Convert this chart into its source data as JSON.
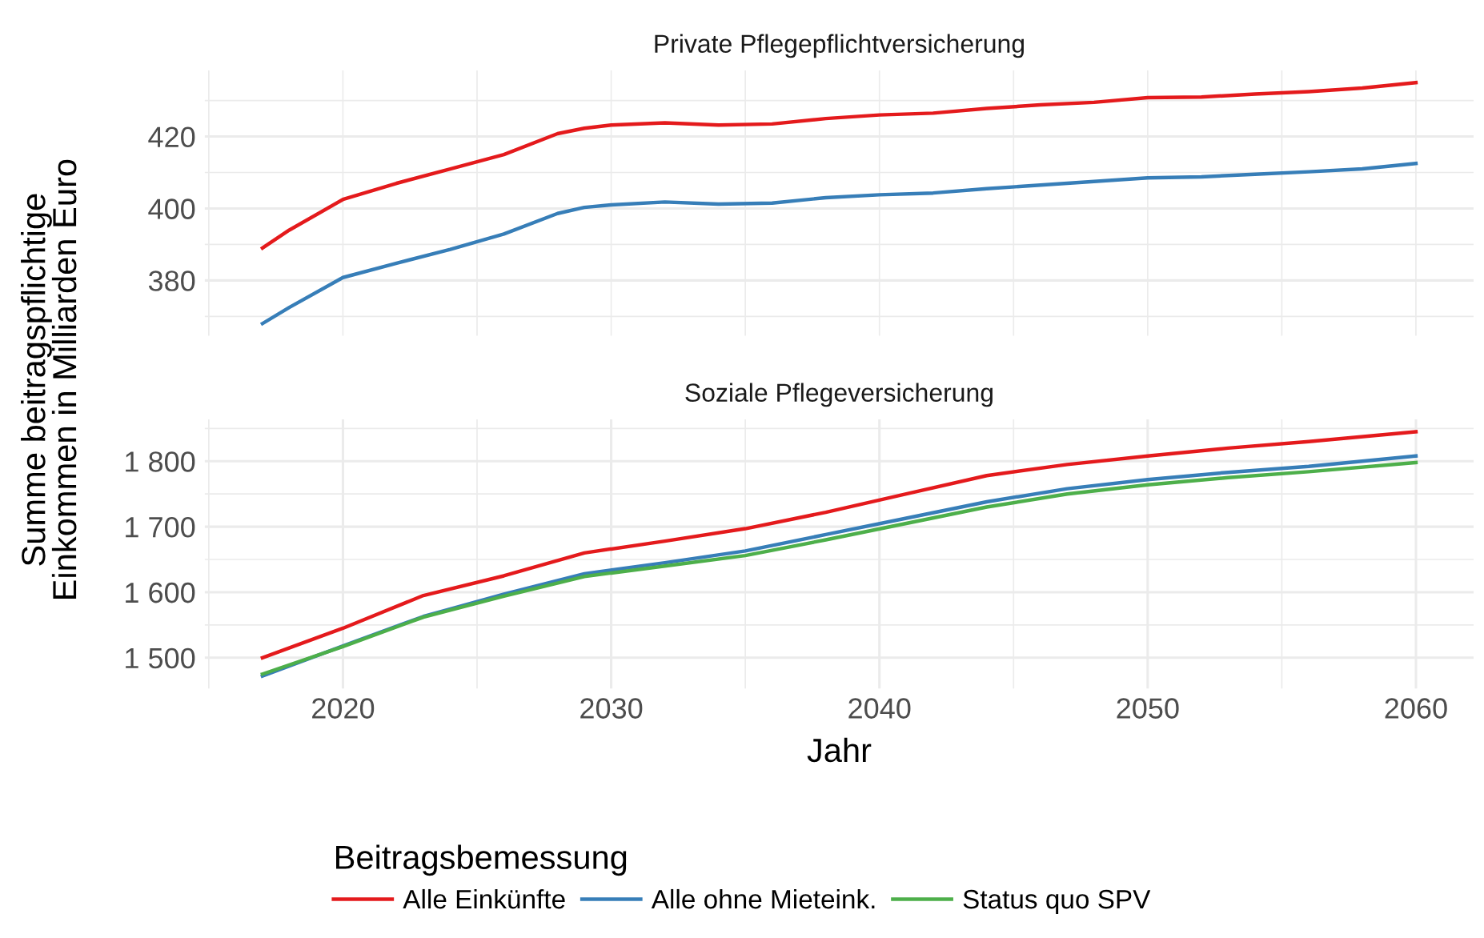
{
  "chart_data": [
    {
      "type": "line",
      "title": "Private Pflegepflichtversicherung",
      "ylabel": "Summe beitragspflichtige\nEinkommen in Milliarden Euro",
      "xlim": [
        2014.85,
        2062.15
      ],
      "xticks": [
        {
          "value": 2015,
          "label": null
        },
        {
          "value": 2020,
          "label": null
        },
        {
          "value": 2025,
          "label": null
        },
        {
          "value": 2030,
          "label": null
        },
        {
          "value": 2035,
          "label": null
        },
        {
          "value": 2040,
          "label": null
        },
        {
          "value": 2045,
          "label": null
        },
        {
          "value": 2050,
          "label": null
        },
        {
          "value": 2055,
          "label": null
        },
        {
          "value": 2060,
          "label": null
        }
      ],
      "ylim": [
        364.6,
        438.4
      ],
      "yticks": [
        {
          "value": 370,
          "label": null
        },
        380,
        {
          "value": 390,
          "label": null
        },
        400,
        {
          "value": 410,
          "label": null
        },
        420,
        {
          "value": 430,
          "label": null
        }
      ],
      "tick_labels": "y",
      "grid": true,
      "x": [
        2017,
        2018,
        2020,
        2022,
        2024,
        2026,
        2028,
        2029,
        2030,
        2032,
        2034,
        2036,
        2038,
        2040,
        2042,
        2044,
        2046,
        2048,
        2050,
        2052,
        2054,
        2056,
        2058,
        2060
      ],
      "series": [
        {
          "color": "#e41a1c",
          "values": [
            389,
            394,
            402.5,
            407,
            411,
            415,
            420.8,
            422.3,
            423.2,
            423.8,
            423.2,
            423.5,
            425,
            426,
            426.5,
            427.8,
            428.8,
            429.5,
            430.8,
            431,
            431.8,
            432.5,
            433.5,
            435
          ]
        },
        {
          "color": "#377eb8",
          "values": [
            368,
            372.5,
            380.8,
            384.8,
            388.6,
            392.9,
            398.6,
            400.3,
            401,
            401.8,
            401.2,
            401.5,
            403,
            403.8,
            404.3,
            405.5,
            406.5,
            407.5,
            408.5,
            408.8,
            409.5,
            410.2,
            411,
            412.5
          ]
        }
      ]
    },
    {
      "type": "line",
      "title": "Soziale Pflegeversicherung",
      "xlabel": "Jahr",
      "xlim": [
        2014.85,
        2062.15
      ],
      "xticks": [
        {
          "value": 2015,
          "label": null
        },
        2020,
        {
          "value": 2025,
          "label": null
        },
        2030,
        {
          "value": 2035,
          "label": null
        },
        2040,
        {
          "value": 2045,
          "label": null
        },
        2050,
        {
          "value": 2055,
          "label": null
        },
        2060
      ],
      "ylim": [
        1453,
        1864
      ],
      "yticks": [
        {
          "value": 1500,
          "label": "1 500"
        },
        {
          "value": 1550,
          "label": null
        },
        {
          "value": 1600,
          "label": "1 600"
        },
        {
          "value": 1650,
          "label": null
        },
        {
          "value": 1700,
          "label": "1 700"
        },
        {
          "value": 1750,
          "label": null
        },
        {
          "value": 1800,
          "label": "1 800"
        },
        {
          "value": 1850,
          "label": null
        }
      ],
      "grid": true,
      "legend": "bottom",
      "legend_title": "Beitragsbemessung",
      "x": [
        2017,
        2020,
        2023,
        2026,
        2029,
        2032,
        2035,
        2038,
        2041,
        2044,
        2047,
        2050,
        2053,
        2056,
        2060
      ],
      "series": [
        {
          "name": "Alle Einkünfte",
          "color": "#e41a1c",
          "values": [
            1500,
            1545,
            1595,
            1625,
            1660,
            1678,
            1697,
            1722,
            1750,
            1778,
            1795,
            1808,
            1820,
            1830,
            1845
          ]
        },
        {
          "name": "Alle ohne Mieteink.",
          "color": "#377eb8",
          "values": [
            1472,
            1518,
            1563,
            1597,
            1628,
            1645,
            1663,
            1688,
            1713,
            1738,
            1758,
            1772,
            1783,
            1792,
            1808
          ]
        },
        {
          "name": "Status quo SPV",
          "color": "#4daf4a",
          "values": [
            1475,
            1517,
            1562,
            1594,
            1624,
            1640,
            1656,
            1680,
            1705,
            1730,
            1750,
            1764,
            1775,
            1784,
            1798
          ]
        }
      ]
    }
  ]
}
